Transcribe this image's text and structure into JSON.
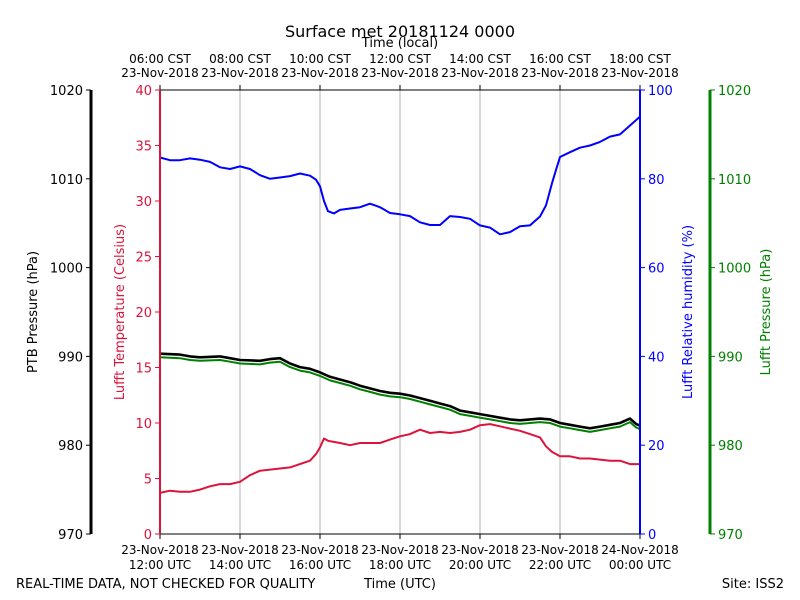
{
  "chart_data": {
    "type": "line",
    "title": "Surface met 20181124 0000",
    "top_axis_label": "Time (local)",
    "xlabel": "Time (UTC)",
    "footer_left": "REAL-TIME DATA, NOT CHECKED FOR QUALITY",
    "footer_right": "Site: ISS2",
    "x_range_hours_utc": [
      12,
      24
    ],
    "x_ticks_utc": [
      {
        "t": 12,
        "date": "23-Nov-2018",
        "time": "12:00 UTC"
      },
      {
        "t": 14,
        "date": "23-Nov-2018",
        "time": "14:00 UTC"
      },
      {
        "t": 16,
        "date": "23-Nov-2018",
        "time": "16:00 UTC"
      },
      {
        "t": 18,
        "date": "23-Nov-2018",
        "time": "18:00 UTC"
      },
      {
        "t": 20,
        "date": "23-Nov-2018",
        "time": "20:00 UTC"
      },
      {
        "t": 22,
        "date": "23-Nov-2018",
        "time": "22:00 UTC"
      },
      {
        "t": 24,
        "date": "24-Nov-2018",
        "time": "00:00 UTC"
      }
    ],
    "x_ticks_local": [
      {
        "t": 12,
        "time": "06:00 CST",
        "date": "23-Nov-2018"
      },
      {
        "t": 14,
        "time": "08:00 CST",
        "date": "23-Nov-2018"
      },
      {
        "t": 16,
        "time": "10:00 CST",
        "date": "23-Nov-2018"
      },
      {
        "t": 18,
        "time": "12:00 CST",
        "date": "23-Nov-2018"
      },
      {
        "t": 20,
        "time": "14:00 CST",
        "date": "23-Nov-2018"
      },
      {
        "t": 22,
        "time": "16:00 CST",
        "date": "23-Nov-2018"
      },
      {
        "t": 24,
        "time": "18:00 CST",
        "date": "23-Nov-2018"
      }
    ],
    "axes": {
      "ptb": {
        "label": "PTB Pressure (hPa)",
        "ylim": [
          970,
          1020
        ],
        "ticks": [
          "970",
          "980",
          "990",
          "1000",
          "1010",
          "1020"
        ],
        "color": "#000000"
      },
      "temp": {
        "label": "Lufft Temperature (Celsius)",
        "ylim": [
          0,
          40
        ],
        "ticks": [
          "0",
          "5",
          "10",
          "15",
          "20",
          "25",
          "30",
          "35",
          "40"
        ],
        "color": "#dc143c"
      },
      "rh": {
        "label": "Lufft Relative humidity (%)",
        "ylim": [
          0,
          100
        ],
        "ticks": [
          "0",
          "20",
          "40",
          "60",
          "80",
          "100"
        ],
        "color": "#0000ff"
      },
      "lufft_p": {
        "label": "Lufft Pressure (hPa)",
        "ylim": [
          970,
          1020
        ],
        "ticks": [
          "970",
          "980",
          "990",
          "1000",
          "1010",
          "1020"
        ],
        "color": "#008000"
      }
    },
    "series": [
      {
        "name": "Lufft Relative humidity",
        "axis": "rh",
        "color": "#0000ff",
        "x": [
          12.0,
          12.25,
          12.5,
          12.75,
          13.0,
          13.25,
          13.5,
          13.75,
          14.0,
          14.25,
          14.5,
          14.75,
          15.0,
          15.25,
          15.5,
          15.75,
          15.9,
          16.0,
          16.1,
          16.2,
          16.35,
          16.5,
          16.75,
          17.0,
          17.25,
          17.5,
          17.75,
          18.0,
          18.25,
          18.5,
          18.75,
          19.0,
          19.25,
          19.5,
          19.75,
          20.0,
          20.25,
          20.5,
          20.75,
          21.0,
          21.25,
          21.5,
          21.65,
          21.8,
          21.9,
          22.0,
          22.25,
          22.5,
          22.75,
          23.0,
          23.25,
          23.5,
          23.75,
          24.0
        ],
        "values": [
          84.8,
          84.2,
          84.2,
          84.6,
          84.3,
          83.8,
          82.6,
          82.2,
          82.8,
          82.2,
          80.8,
          80.0,
          80.3,
          80.6,
          81.2,
          80.7,
          79.8,
          78.3,
          75.0,
          72.7,
          72.2,
          73.0,
          73.3,
          73.6,
          74.4,
          73.6,
          72.3,
          72.0,
          71.6,
          70.2,
          69.6,
          69.6,
          71.6,
          71.4,
          71.0,
          69.5,
          69.0,
          67.5,
          68.0,
          69.3,
          69.5,
          71.5,
          74.0,
          79.0,
          82.0,
          84.9,
          86.0,
          87.0,
          87.5,
          88.3,
          89.5,
          90.0,
          92.0,
          94.0
        ]
      },
      {
        "name": "Lufft Temperature",
        "axis": "temp",
        "color": "#dc143c",
        "x": [
          12.0,
          12.25,
          12.5,
          12.75,
          13.0,
          13.25,
          13.5,
          13.75,
          14.0,
          14.25,
          14.5,
          14.75,
          15.0,
          15.25,
          15.5,
          15.75,
          15.9,
          16.0,
          16.1,
          16.2,
          16.5,
          16.75,
          17.0,
          17.25,
          17.5,
          17.75,
          18.0,
          18.25,
          18.5,
          18.75,
          19.0,
          19.25,
          19.5,
          19.75,
          20.0,
          20.25,
          20.5,
          20.75,
          21.0,
          21.25,
          21.5,
          21.65,
          21.8,
          22.0,
          22.25,
          22.5,
          22.75,
          23.0,
          23.25,
          23.5,
          23.75,
          24.0
        ],
        "values": [
          3.7,
          3.9,
          3.8,
          3.8,
          4.0,
          4.3,
          4.5,
          4.5,
          4.7,
          5.3,
          5.7,
          5.8,
          5.9,
          6.0,
          6.3,
          6.6,
          7.2,
          7.8,
          8.6,
          8.4,
          8.2,
          8.0,
          8.2,
          8.2,
          8.2,
          8.5,
          8.8,
          9.0,
          9.4,
          9.1,
          9.2,
          9.1,
          9.2,
          9.4,
          9.8,
          9.9,
          9.7,
          9.5,
          9.3,
          9.0,
          8.7,
          7.9,
          7.4,
          7.0,
          7.0,
          6.8,
          6.8,
          6.7,
          6.6,
          6.6,
          6.3,
          6.3
        ]
      },
      {
        "name": "PTB Pressure",
        "axis": "ptb",
        "color": "#000000",
        "x": [
          12.0,
          12.5,
          12.75,
          13.0,
          13.5,
          13.75,
          14.0,
          14.5,
          14.75,
          15.0,
          15.25,
          15.5,
          15.75,
          16.0,
          16.25,
          16.5,
          16.75,
          17.0,
          17.25,
          17.5,
          17.75,
          18.0,
          18.25,
          18.5,
          18.75,
          19.0,
          19.25,
          19.5,
          19.75,
          20.0,
          20.25,
          20.5,
          20.75,
          21.0,
          21.25,
          21.5,
          21.75,
          22.0,
          22.25,
          22.5,
          22.75,
          23.0,
          23.25,
          23.5,
          23.75,
          23.9,
          24.0
        ],
        "values": [
          990.3,
          990.2,
          990.0,
          989.9,
          990.0,
          989.8,
          989.6,
          989.5,
          989.7,
          989.8,
          989.2,
          988.8,
          988.6,
          988.2,
          987.7,
          987.4,
          987.1,
          986.7,
          986.4,
          986.1,
          985.9,
          985.8,
          985.6,
          985.3,
          985.0,
          984.7,
          984.4,
          983.9,
          983.7,
          983.5,
          983.3,
          983.1,
          982.9,
          982.8,
          982.9,
          983.0,
          982.9,
          982.5,
          982.3,
          982.1,
          981.9,
          982.1,
          982.3,
          982.5,
          983.0,
          982.4,
          982.2
        ]
      },
      {
        "name": "Lufft Pressure",
        "axis": "lufft_p",
        "color": "#008000",
        "x": [
          12.0,
          12.5,
          12.75,
          13.0,
          13.5,
          13.75,
          14.0,
          14.5,
          14.75,
          15.0,
          15.25,
          15.5,
          15.75,
          16.0,
          16.25,
          16.5,
          16.75,
          17.0,
          17.25,
          17.5,
          17.75,
          18.0,
          18.25,
          18.5,
          18.75,
          19.0,
          19.25,
          19.5,
          19.75,
          20.0,
          20.25,
          20.5,
          20.75,
          21.0,
          21.25,
          21.5,
          21.75,
          22.0,
          22.25,
          22.5,
          22.75,
          23.0,
          23.25,
          23.5,
          23.75,
          23.9,
          24.0
        ],
        "values": [
          989.9,
          989.8,
          989.6,
          989.5,
          989.6,
          989.4,
          989.2,
          989.1,
          989.3,
          989.4,
          988.8,
          988.4,
          988.2,
          987.8,
          987.3,
          987.0,
          986.7,
          986.3,
          986.0,
          985.7,
          985.5,
          985.4,
          985.2,
          984.9,
          984.6,
          984.3,
          984.0,
          983.5,
          983.3,
          983.1,
          982.9,
          982.7,
          982.5,
          982.4,
          982.5,
          982.6,
          982.5,
          982.1,
          981.9,
          981.7,
          981.5,
          981.7,
          981.9,
          982.1,
          982.6,
          982.0,
          981.8
        ]
      }
    ]
  }
}
